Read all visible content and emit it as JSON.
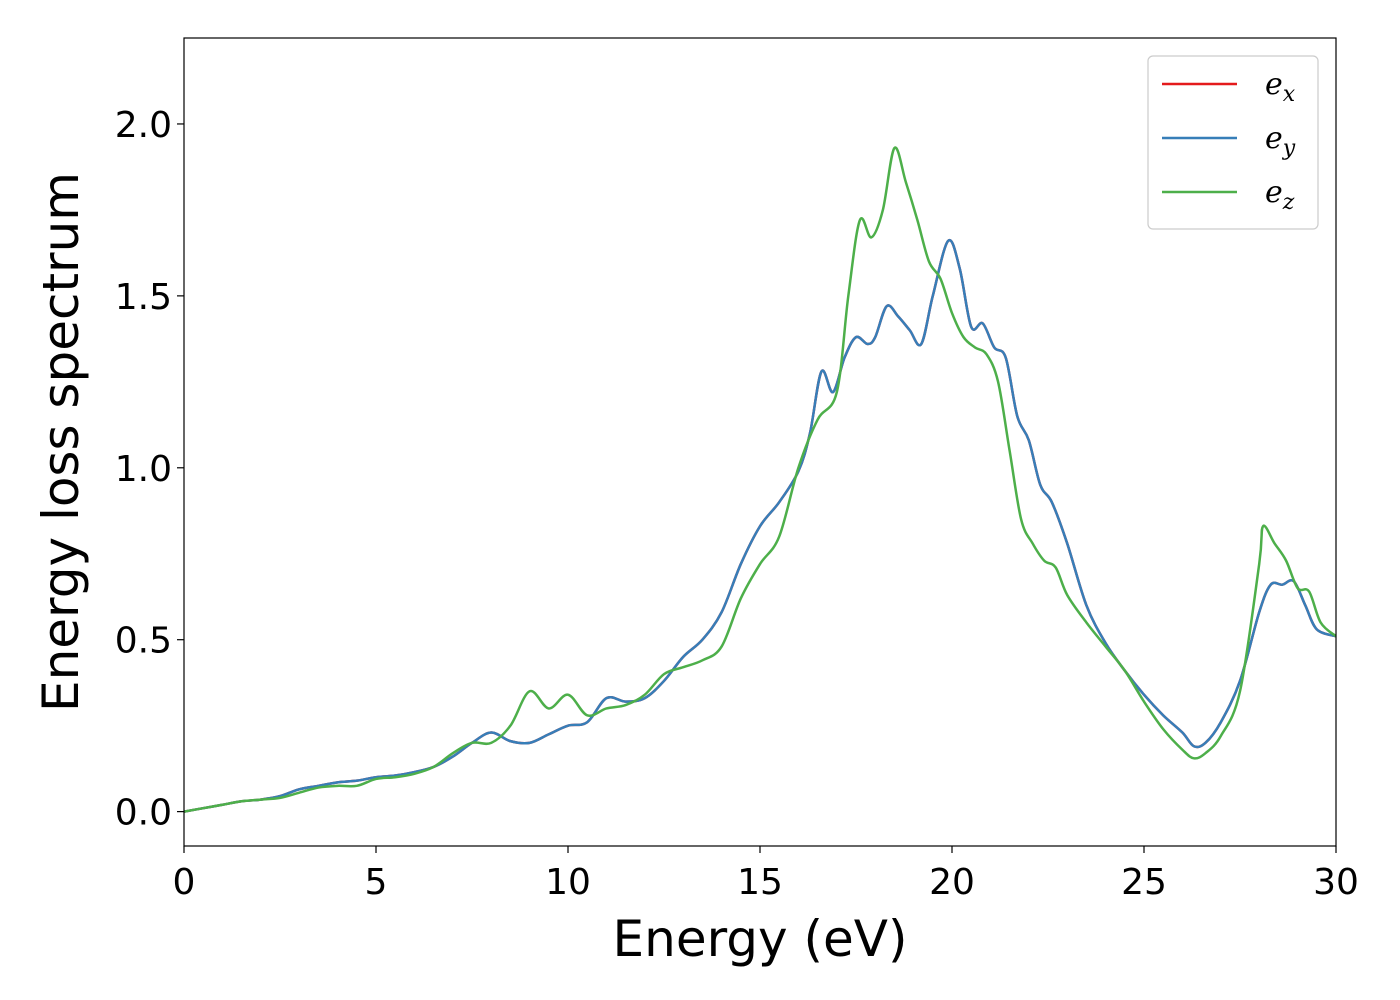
{
  "chart_data": {
    "type": "line",
    "title": "",
    "xlabel": "Energy (eV)",
    "ylabel": "Energy loss spectrum",
    "xlim": [
      0,
      30
    ],
    "ylim": [
      -0.1,
      2.25
    ],
    "xticks": [
      0,
      5,
      10,
      15,
      20,
      25,
      30
    ],
    "xtick_labels": [
      "0",
      "5",
      "10",
      "15",
      "20",
      "25",
      "30"
    ],
    "yticks": [
      0.0,
      0.5,
      1.0,
      1.5,
      2.0
    ],
    "ytick_labels": [
      "0.0",
      "0.5",
      "1.0",
      "1.5",
      "2.0"
    ],
    "grid": false,
    "legend_position": "top-right",
    "series": [
      {
        "name": "e",
        "subscript": "x",
        "color": "#e41a1c",
        "x": [
          0,
          0.5,
          1,
          1.5,
          2,
          2.5,
          3,
          3.5,
          4,
          4.5,
          5,
          5.5,
          6,
          6.5,
          7,
          7.5,
          8,
          8.5,
          9,
          9.5,
          10,
          10.5,
          11,
          11.5,
          12,
          12.5,
          13,
          13.5,
          14,
          14.5,
          15,
          15.5,
          16,
          16.3,
          16.6,
          16.9,
          17.2,
          17.5,
          17.8,
          18,
          18.3,
          18.6,
          18.9,
          19.2,
          19.5,
          19.9,
          20.2,
          20.5,
          20.8,
          21.1,
          21.4,
          21.7,
          22,
          22.3,
          22.6,
          23,
          23.5,
          24,
          24.5,
          25,
          25.5,
          26,
          26.3,
          26.6,
          27,
          27.5,
          28,
          28.3,
          28.6,
          28.9,
          29.2,
          29.5,
          30
        ],
        "y": [
          0,
          0.01,
          0.02,
          0.03,
          0.035,
          0.045,
          0.065,
          0.075,
          0.085,
          0.09,
          0.1,
          0.105,
          0.115,
          0.13,
          0.16,
          0.2,
          0.23,
          0.205,
          0.2,
          0.225,
          0.25,
          0.26,
          0.33,
          0.32,
          0.33,
          0.38,
          0.45,
          0.5,
          0.58,
          0.72,
          0.83,
          0.9,
          0.99,
          1.1,
          1.28,
          1.22,
          1.32,
          1.38,
          1.36,
          1.38,
          1.47,
          1.44,
          1.4,
          1.36,
          1.5,
          1.66,
          1.58,
          1.41,
          1.42,
          1.35,
          1.32,
          1.15,
          1.08,
          0.95,
          0.9,
          0.78,
          0.6,
          0.49,
          0.41,
          0.34,
          0.28,
          0.23,
          0.19,
          0.2,
          0.26,
          0.38,
          0.58,
          0.66,
          0.66,
          0.67,
          0.6,
          0.53,
          0.51
        ]
      },
      {
        "name": "e",
        "subscript": "y",
        "color": "#377eb8",
        "x": [
          0,
          0.5,
          1,
          1.5,
          2,
          2.5,
          3,
          3.5,
          4,
          4.5,
          5,
          5.5,
          6,
          6.5,
          7,
          7.5,
          8,
          8.5,
          9,
          9.5,
          10,
          10.5,
          11,
          11.5,
          12,
          12.5,
          13,
          13.5,
          14,
          14.5,
          15,
          15.5,
          16,
          16.3,
          16.6,
          16.9,
          17.2,
          17.5,
          17.8,
          18,
          18.3,
          18.6,
          18.9,
          19.2,
          19.5,
          19.9,
          20.2,
          20.5,
          20.8,
          21.1,
          21.4,
          21.7,
          22,
          22.3,
          22.6,
          23,
          23.5,
          24,
          24.5,
          25,
          25.5,
          26,
          26.3,
          26.6,
          27,
          27.5,
          28,
          28.3,
          28.6,
          28.9,
          29.2,
          29.5,
          30
        ],
        "y": [
          0,
          0.01,
          0.02,
          0.03,
          0.035,
          0.045,
          0.065,
          0.075,
          0.085,
          0.09,
          0.1,
          0.105,
          0.115,
          0.13,
          0.16,
          0.2,
          0.23,
          0.205,
          0.2,
          0.225,
          0.25,
          0.26,
          0.33,
          0.32,
          0.33,
          0.38,
          0.45,
          0.5,
          0.58,
          0.72,
          0.83,
          0.9,
          0.99,
          1.1,
          1.28,
          1.22,
          1.32,
          1.38,
          1.36,
          1.38,
          1.47,
          1.44,
          1.4,
          1.36,
          1.5,
          1.66,
          1.58,
          1.41,
          1.42,
          1.35,
          1.32,
          1.15,
          1.08,
          0.95,
          0.9,
          0.78,
          0.6,
          0.49,
          0.41,
          0.34,
          0.28,
          0.23,
          0.19,
          0.2,
          0.26,
          0.38,
          0.58,
          0.66,
          0.66,
          0.67,
          0.6,
          0.53,
          0.51
        ]
      },
      {
        "name": "e",
        "subscript": "z",
        "color": "#4daf4a",
        "x": [
          0,
          0.5,
          1,
          1.5,
          2,
          2.5,
          3,
          3.5,
          4,
          4.5,
          5,
          5.5,
          6,
          6.5,
          7,
          7.5,
          8,
          8.5,
          9,
          9.5,
          10,
          10.5,
          11,
          11.5,
          12,
          12.5,
          13,
          13.5,
          14,
          14.5,
          15,
          15.5,
          16,
          16.5,
          17,
          17.3,
          17.6,
          17.9,
          18.2,
          18.5,
          18.8,
          19.1,
          19.4,
          19.7,
          20,
          20.3,
          20.6,
          20.9,
          21.2,
          21.5,
          21.8,
          22.1,
          22.4,
          22.7,
          23,
          23.5,
          24,
          24.5,
          25,
          25.5,
          26,
          26.3,
          26.6,
          27,
          27.5,
          28,
          28.1,
          28.4,
          28.7,
          29,
          29.3,
          29.6,
          30
        ],
        "y": [
          0,
          0.01,
          0.02,
          0.03,
          0.035,
          0.04,
          0.055,
          0.07,
          0.075,
          0.075,
          0.095,
          0.1,
          0.11,
          0.13,
          0.17,
          0.2,
          0.2,
          0.25,
          0.35,
          0.3,
          0.34,
          0.28,
          0.3,
          0.31,
          0.34,
          0.4,
          0.42,
          0.44,
          0.48,
          0.62,
          0.72,
          0.8,
          1.0,
          1.14,
          1.22,
          1.5,
          1.72,
          1.67,
          1.75,
          1.93,
          1.83,
          1.72,
          1.6,
          1.55,
          1.45,
          1.38,
          1.35,
          1.33,
          1.25,
          1.05,
          0.85,
          0.78,
          0.73,
          0.71,
          0.63,
          0.55,
          0.48,
          0.41,
          0.32,
          0.24,
          0.18,
          0.155,
          0.17,
          0.22,
          0.35,
          0.72,
          0.83,
          0.78,
          0.73,
          0.65,
          0.64,
          0.55,
          0.51
        ]
      }
    ]
  }
}
